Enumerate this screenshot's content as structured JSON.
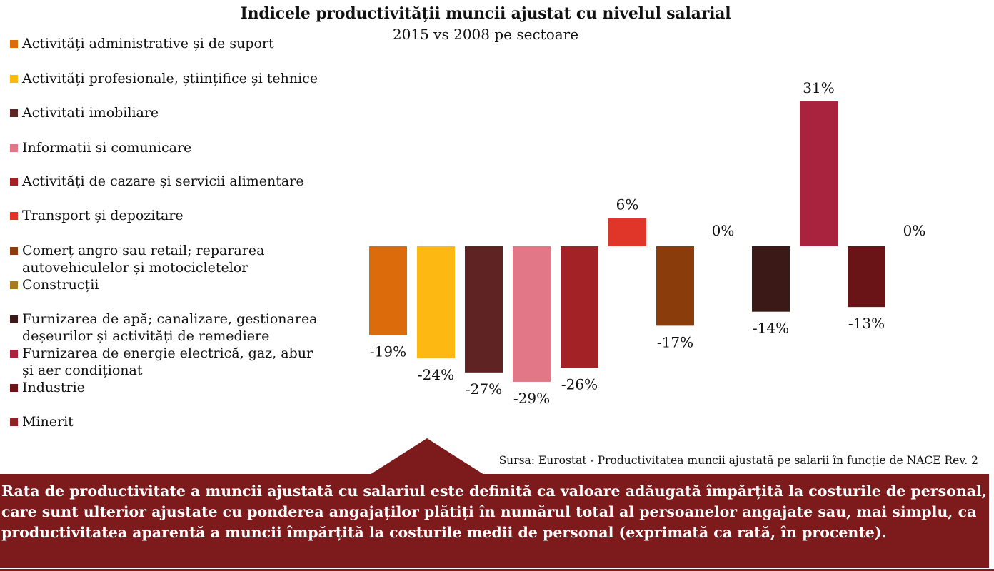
{
  "chart_data": {
    "type": "bar",
    "title": "Indicele productivității muncii ajustat cu nivelul salarial",
    "subtitle": "2015 vs 2008 pe sectoare",
    "value_suffix": "%",
    "ylim": [
      -29,
      31
    ],
    "series": [
      {
        "name": "Activități administrative și de suport",
        "value": -19,
        "label": "-19%",
        "color": "#dc6b0b"
      },
      {
        "name": "Activități profesionale, științifice și tehnice",
        "value": -24,
        "label": "-24%",
        "color": "#fdb812"
      },
      {
        "name": "Activitati imobiliare",
        "value": -27,
        "label": "-27%",
        "color": "#5e2322"
      },
      {
        "name": "Informatii si comunicare",
        "value": -29,
        "label": "-29%",
        "color": "#e27788"
      },
      {
        "name": "Activități de cazare și servicii alimentare",
        "value": -26,
        "label": "-26%",
        "color": "#a22226"
      },
      {
        "name": "Transport și depozitare",
        "value": 6,
        "label": "6%",
        "color": "#e0362a"
      },
      {
        "name": "Comerț angro sau retail; repararea autovehiculelor și motocicletelor",
        "value": -17,
        "label": "-17%",
        "color": "#8a3c0b"
      },
      {
        "name": "Construcții",
        "value": 0,
        "label": "0%",
        "color": "#a77a1f"
      },
      {
        "name": "Furnizarea de apă; canalizare, gestionarea deșeurilor și activități de remediere",
        "value": -14,
        "label": "-14%",
        "color": "#3a1917"
      },
      {
        "name": "Furnizarea de energie electrică, gaz, abur și aer condiționat",
        "value": 31,
        "label": "31%",
        "color": "#a9233f"
      },
      {
        "name": "Industrie",
        "value": -13,
        "label": "-13%",
        "color": "#6a1418"
      },
      {
        "name": "Minerit",
        "value": 0,
        "label": "0%",
        "color": "#8f2222"
      }
    ]
  },
  "source_text": "Sursa: Eurostat - Productivitatea muncii ajustată pe salarii în funcție de NACE Rev. 2",
  "note_text": "Rata de productivitate a muncii ajustată cu salariul este definită ca valoare adăugată împărțită la costurile de personal, care sunt ulterior ajustate cu ponderea angajaților plătiți în numărul total al persoanelor angajate sau, mai simplu, ca productivitatea aparentă a muncii împărțită la costurile medii de personal (exprimată ca rată, în procente).",
  "colors": {
    "note_background": "#7d1a1c",
    "note_text": "#ffffff"
  }
}
